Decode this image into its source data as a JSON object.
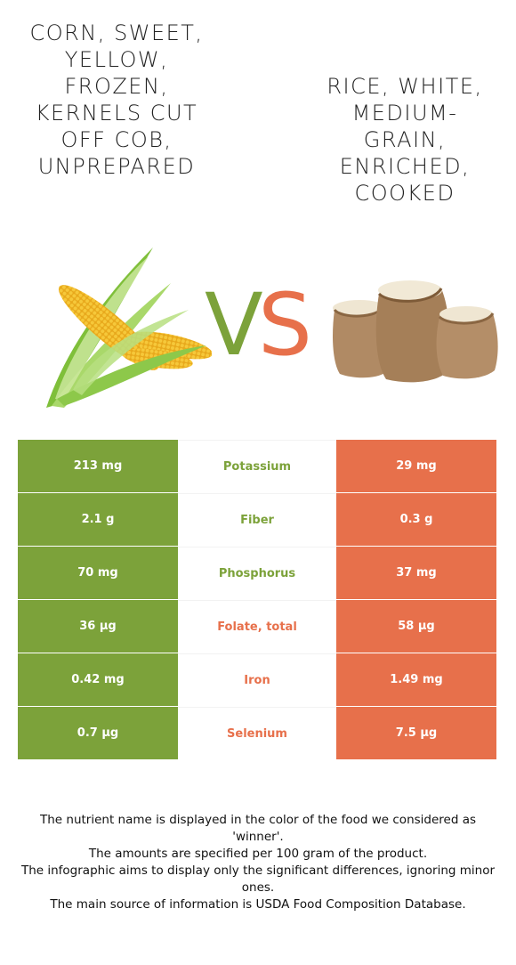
{
  "food_left": {
    "title": "Corn, sweet, yellow, frozen, kernels cut off cob, unprepared",
    "color": "#7ca23a",
    "icon": "corn-icon"
  },
  "food_right": {
    "title": "Rice, white, medium-grain, enriched, cooked",
    "color": "#e7704b",
    "icon": "rice-sacks-icon"
  },
  "vs": {
    "v": "V",
    "s": "S"
  },
  "rows": [
    {
      "left": "213 mg",
      "nutrient": "Potassium",
      "right": "29 mg",
      "winner": "left"
    },
    {
      "left": "2.1 g",
      "nutrient": "Fiber",
      "right": "0.3 g",
      "winner": "left"
    },
    {
      "left": "70 mg",
      "nutrient": "Phosphorus",
      "right": "37 mg",
      "winner": "left"
    },
    {
      "left": "36 µg",
      "nutrient": "Folate, total",
      "right": "58 µg",
      "winner": "right"
    },
    {
      "left": "0.42 mg",
      "nutrient": "Iron",
      "right": "1.49 mg",
      "winner": "right"
    },
    {
      "left": "0.7 µg",
      "nutrient": "Selenium",
      "right": "7.5 µg",
      "winner": "right"
    }
  ],
  "footnote": [
    "The nutrient name is displayed in the color of the food we considered as 'winner'.",
    "The amounts are specified per 100 gram of the product.",
    "The infographic aims to display only the significant differences, ignoring minor ones.",
    "The main source of information is USDA Food Composition Database."
  ]
}
